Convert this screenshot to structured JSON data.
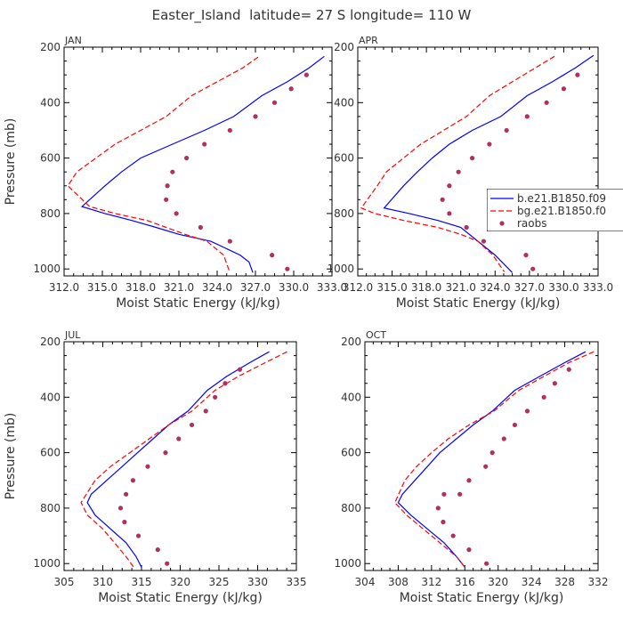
{
  "figure_title": "Easter_Island  latitude= 27 S longitude= 110 W",
  "colors": {
    "model1": "#0000ff",
    "model2": "#ff0000",
    "raobs": "#b03060",
    "axis": "#000000",
    "text": "#333333"
  },
  "legend": {
    "entries": [
      "b.e21.B1850.f09",
      "bg.e21.B1850.f0",
      "raobs"
    ]
  },
  "chart_data": [
    {
      "type": "line",
      "title": "JAN",
      "xlabel": "Moist Static Energy (kJ/kg)",
      "ylabel": "Pressure (mb)",
      "xlim": [
        312.0,
        333.0
      ],
      "ylim": [
        1025,
        200
      ],
      "xticks": [
        312,
        315,
        318,
        321,
        324,
        327,
        330,
        333
      ],
      "xtick_labels": [
        "312.0",
        "315.0",
        "318.0",
        "321.0",
        "324.0",
        "327.0",
        "330.0",
        "333.0"
      ],
      "yticks": [
        200,
        400,
        600,
        800,
        1000
      ],
      "series": [
        {
          "name": "b.e21.B1850.f09",
          "style": "solid",
          "x": [
            332.4,
            331.2,
            329.5,
            327.5,
            325.3,
            323.0,
            320.5,
            318.0,
            316.5,
            315.2,
            313.4,
            315.2,
            317.3,
            319.2,
            321.0,
            323.5,
            325.8,
            326.5,
            326.8
          ],
          "y": [
            233,
            275,
            325,
            375,
            450,
            500,
            550,
            600,
            650,
            700,
            775,
            800,
            825,
            850,
            875,
            900,
            950,
            975,
            1013
          ]
        },
        {
          "name": "bg.e21.B1850.f0",
          "style": "dashed",
          "x": [
            327.2,
            326.0,
            324.0,
            322.0,
            320.0,
            318.0,
            316.0,
            314.5,
            313.0,
            312.3,
            314.0,
            316.0,
            318.5,
            320.0,
            321.5,
            323.2,
            324.5,
            325.0
          ],
          "y": [
            236,
            275,
            325,
            375,
            450,
            500,
            550,
            600,
            650,
            700,
            775,
            800,
            825,
            850,
            875,
            900,
            950,
            1013
          ]
        },
        {
          "name": "raobs",
          "style": "dots",
          "x": [
            331.0,
            329.8,
            328.5,
            327.0,
            325.0,
            323.0,
            321.6,
            320.5,
            320.1,
            320.0,
            320.8,
            322.7,
            325.0,
            328.3,
            329.5
          ],
          "y": [
            300,
            350,
            400,
            450,
            500,
            550,
            600,
            650,
            700,
            750,
            800,
            850,
            900,
            950,
            1000
          ]
        }
      ]
    },
    {
      "type": "line",
      "title": "APR",
      "xlabel": "Moist Static Energy (kJ/kg)",
      "ylabel": "",
      "xlim": [
        312.0,
        333.0
      ],
      "ylim": [
        1025,
        200
      ],
      "xticks": [
        312,
        315,
        318,
        321,
        324,
        327,
        330,
        333
      ],
      "xtick_labels": [
        "312.0",
        "315.0",
        "318.0",
        "321.0",
        "324.0",
        "327.0",
        "330.0",
        "333.0"
      ],
      "yticks": [
        200,
        400,
        600,
        800,
        1000
      ],
      "series": [
        {
          "name": "b.e21.B1850.f09",
          "style": "solid",
          "x": [
            332.6,
            331.0,
            329.0,
            326.8,
            324.5,
            322.0,
            320.0,
            318.5,
            317.2,
            316.0,
            314.3,
            316.5,
            319.0,
            321.0,
            322.5,
            324.0,
            325.5
          ],
          "y": [
            230,
            275,
            325,
            375,
            450,
            500,
            550,
            600,
            650,
            700,
            780,
            800,
            825,
            850,
            900,
            950,
            1013
          ]
        },
        {
          "name": "bg.e21.B1850.f0",
          "style": "dashed",
          "x": [
            329.2,
            327.5,
            325.5,
            323.5,
            321.5,
            319.5,
            317.5,
            316.0,
            314.5,
            313.7,
            312.3,
            313.5,
            316.0,
            319.0,
            321.0,
            322.5,
            323.8,
            324.8
          ],
          "y": [
            233,
            275,
            325,
            375,
            450,
            500,
            550,
            600,
            650,
            700,
            780,
            800,
            825,
            850,
            875,
            900,
            950,
            1010
          ]
        },
        {
          "name": "raobs",
          "style": "dots",
          "x": [
            331.2,
            330.0,
            328.5,
            326.8,
            325.0,
            323.5,
            322.0,
            320.8,
            320.0,
            319.4,
            320.0,
            321.5,
            323.0,
            326.7,
            327.3
          ],
          "y": [
            300,
            350,
            400,
            450,
            500,
            550,
            600,
            650,
            700,
            750,
            800,
            850,
            900,
            950,
            1000
          ]
        }
      ]
    },
    {
      "type": "line",
      "title": "JUL",
      "xlabel": "Moist Static Energy (kJ/kg)",
      "ylabel": "Pressure (mb)",
      "xlim": [
        305,
        335
      ],
      "ylim": [
        1025,
        200
      ],
      "xticks": [
        305,
        310,
        315,
        320,
        325,
        330,
        335
      ],
      "xtick_labels": [
        "305",
        "310",
        "315",
        "320",
        "325",
        "330",
        "335"
      ],
      "yticks": [
        200,
        400,
        600,
        800,
        1000
      ],
      "series": [
        {
          "name": "b.e21.B1850.f09",
          "style": "solid",
          "x": [
            331.5,
            329.0,
            326.0,
            323.5,
            321.0,
            318.5,
            316.5,
            314.5,
            312.5,
            310.5,
            308.5,
            308.0,
            309.0,
            311.0,
            313.0,
            314.3,
            315.0
          ],
          "y": [
            236,
            275,
            325,
            375,
            450,
            500,
            550,
            600,
            650,
            700,
            750,
            780,
            825,
            875,
            925,
            975,
            1013
          ]
        },
        {
          "name": "bg.e21.B1850.f0",
          "style": "dashed",
          "x": [
            333.8,
            331.0,
            327.5,
            324.5,
            321.5,
            318.5,
            316.0,
            313.5,
            311.0,
            309.0,
            307.2,
            308.0,
            310.0,
            311.5,
            313.0,
            314.0
          ],
          "y": [
            236,
            275,
            325,
            375,
            450,
            500,
            550,
            600,
            650,
            700,
            780,
            825,
            875,
            925,
            975,
            1013
          ]
        },
        {
          "name": "raobs",
          "style": "dots",
          "x": [
            327.7,
            325.8,
            324.5,
            323.3,
            321.5,
            319.8,
            318.1,
            315.8,
            313.9,
            313.0,
            312.3,
            312.8,
            314.6,
            317.1,
            318.3
          ],
          "y": [
            300,
            350,
            400,
            450,
            500,
            550,
            600,
            650,
            700,
            750,
            800,
            850,
            900,
            950,
            1000
          ]
        }
      ]
    },
    {
      "type": "line",
      "title": "OCT",
      "xlabel": "Moist Static Energy (kJ/kg)",
      "ylabel": "",
      "xlim": [
        304,
        332
      ],
      "ylim": [
        1025,
        200
      ],
      "xticks": [
        304,
        308,
        312,
        316,
        320,
        324,
        328,
        332
      ],
      "xtick_labels": [
        "304",
        "308",
        "312",
        "316",
        "320",
        "324",
        "328",
        "332"
      ],
      "yticks": [
        200,
        400,
        600,
        800,
        1000
      ],
      "series": [
        {
          "name": "b.e21.B1850.f09",
          "style": "solid",
          "x": [
            330.5,
            328.0,
            325.0,
            322.0,
            319.3,
            317.0,
            315.0,
            313.0,
            311.5,
            310.0,
            308.5,
            308.0,
            309.5,
            311.5,
            313.5,
            315.0,
            316.0
          ],
          "y": [
            236,
            275,
            325,
            375,
            450,
            500,
            550,
            600,
            650,
            700,
            750,
            780,
            825,
            875,
            925,
            975,
            1013
          ]
        },
        {
          "name": "bg.e21.B1850.f0",
          "style": "dashed",
          "x": [
            331.5,
            328.5,
            325.5,
            322.5,
            319.5,
            316.5,
            314.0,
            312.0,
            310.2,
            308.8,
            307.6,
            309.0,
            311.0,
            313.0,
            315.0,
            316.0
          ],
          "y": [
            236,
            275,
            325,
            375,
            450,
            500,
            550,
            600,
            650,
            700,
            780,
            825,
            875,
            925,
            975,
            1013
          ]
        },
        {
          "name": "raobs",
          "style": "dots",
          "x": [
            328.5,
            326.8,
            325.5,
            323.5,
            322.0,
            320.7,
            319.3,
            318.5,
            316.5,
            315.4,
            313.5,
            312.8,
            313.4,
            314.6,
            316.5,
            318.6
          ],
          "y": [
            300,
            350,
            400,
            450,
            500,
            550,
            600,
            650,
            700,
            750,
            750,
            800,
            850,
            900,
            950,
            1000
          ]
        }
      ]
    }
  ]
}
